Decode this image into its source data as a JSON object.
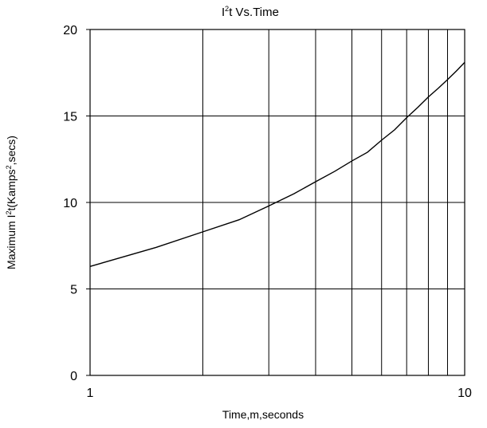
{
  "chart_data": {
    "type": "line",
    "title": {
      "pre": "I",
      "sup": "2",
      "post": "t  Vs.Time"
    },
    "xlabel": "Time,m,seconds",
    "ylabel": {
      "pre": "Maximum I",
      "sup1": "2",
      "mid": "t(Kamps",
      "sup2": "2",
      "post": ",secs)"
    },
    "x_scale": "log",
    "xlim": [
      1,
      10
    ],
    "ylim": [
      0,
      20
    ],
    "x_ticks": [
      1,
      10
    ],
    "y_ticks": [
      0,
      5,
      10,
      15,
      20
    ],
    "grid": true,
    "series": [
      {
        "x": [
          1,
          1.5,
          2,
          2.5,
          3,
          3.5,
          4,
          4.5,
          5,
          5.5,
          6,
          6.5,
          7,
          7.5,
          8,
          8.5,
          9,
          9.5,
          10
        ],
        "y": [
          6.3,
          7.4,
          8.3,
          9.0,
          9.8,
          10.5,
          11.2,
          11.8,
          12.4,
          12.9,
          13.6,
          14.2,
          14.9,
          15.5,
          16.1,
          16.6,
          17.1,
          17.6,
          18.1
        ]
      }
    ],
    "colors": {
      "line": "#000000",
      "grid": "#000000"
    }
  }
}
